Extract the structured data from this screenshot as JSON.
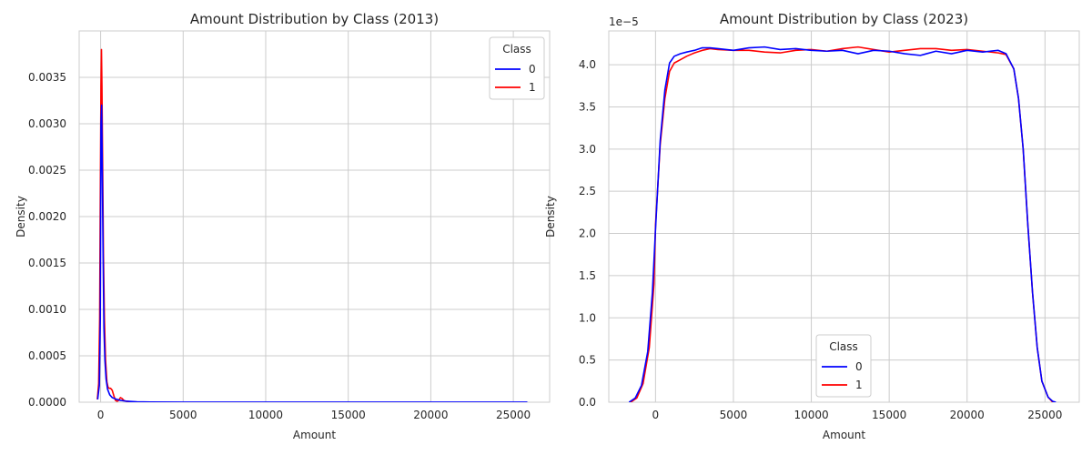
{
  "chart_data": [
    {
      "type": "line",
      "title": "Amount Distribution by Class (2013)",
      "xlabel": "Amount",
      "ylabel": "Density",
      "xlim": [
        -1300,
        27200
      ],
      "ylim": [
        0,
        0.004
      ],
      "xticks": [
        0,
        5000,
        10000,
        15000,
        20000,
        25000
      ],
      "xtick_labels": [
        "0",
        "5000",
        "10000",
        "15000",
        "20000",
        "25000"
      ],
      "yticks": [
        0,
        0.0005,
        0.001,
        0.0015,
        0.002,
        0.0025,
        0.003,
        0.0035
      ],
      "ytick_labels": [
        "0.0000",
        "0.0005",
        "0.0010",
        "0.0015",
        "0.0020",
        "0.0025",
        "0.0030",
        "0.0035"
      ],
      "offset_label": "",
      "grid": true,
      "legend": {
        "title": "Class",
        "placement": "upper right"
      },
      "series": [
        {
          "name": "0",
          "color": "#0000ff",
          "x": [
            -180,
            -80,
            -20,
            20,
            60,
            100,
            150,
            200,
            260,
            330,
            420,
            550,
            700,
            900,
            1200,
            1600,
            2200,
            3000,
            5000,
            10000,
            15000,
            20000,
            25000,
            25850
          ],
          "y": [
            3e-05,
            0.00018,
            0.0009,
            0.003,
            0.0032,
            0.0025,
            0.0016,
            0.0008,
            0.00045,
            0.00025,
            0.00014,
            8e-05,
            5e-05,
            3.5e-05,
            2e-05,
            1e-05,
            4e-06,
            2e-06,
            1.2e-06,
            8e-07,
            6e-07,
            5e-07,
            4e-07,
            2e-07
          ]
        },
        {
          "name": "1",
          "color": "#ff0000",
          "x": [
            -200,
            -120,
            -60,
            -20,
            20,
            50,
            80,
            120,
            170,
            230,
            300,
            380,
            450,
            520,
            600,
            700,
            800,
            900,
            1000,
            1100,
            1200,
            1300,
            1400,
            1550,
            1800,
            2100,
            2400
          ],
          "y": [
            3e-05,
            0.0002,
            0.0009,
            0.0022,
            0.0034,
            0.0038,
            0.0034,
            0.0026,
            0.0016,
            0.0009,
            0.00045,
            0.00022,
            0.00016,
            0.00015,
            0.00015,
            0.00013,
            7e-05,
            2e-05,
            1e-05,
            2e-05,
            5e-05,
            4e-05,
            2e-05,
            1e-05,
            6e-06,
            2e-06,
            0.0
          ]
        }
      ]
    },
    {
      "type": "line",
      "title": "Amount Distribution by Class (2023)",
      "xlabel": "Amount",
      "ylabel": "Density",
      "xlim": [
        -3000,
        27200
      ],
      "ylim": [
        0,
        4.4
      ],
      "xticks": [
        0,
        5000,
        10000,
        15000,
        20000,
        25000
      ],
      "xtick_labels": [
        "0",
        "5000",
        "10000",
        "15000",
        "20000",
        "25000"
      ],
      "yticks": [
        0,
        0.5,
        1.0,
        1.5,
        2.0,
        2.5,
        3.0,
        3.5,
        4.0
      ],
      "ytick_labels": [
        "0.0",
        "0.5",
        "1.0",
        "1.5",
        "2.0",
        "2.5",
        "3.0",
        "3.5",
        "4.0"
      ],
      "offset_label": "1e−5",
      "grid": true,
      "legend": {
        "title": "Class",
        "placement": "lower center"
      },
      "series": [
        {
          "name": "0",
          "color": "#0000ff",
          "x": [
            -1700,
            -1300,
            -900,
            -500,
            -200,
            0,
            300,
            600,
            900,
            1200,
            1600,
            2000,
            2500,
            3000,
            3500,
            4000,
            5000,
            6000,
            7000,
            8000,
            9000,
            10000,
            11000,
            12000,
            13000,
            14000,
            15000,
            16000,
            17000,
            18000,
            19000,
            20000,
            21000,
            22000,
            22500,
            23000,
            23300,
            23600,
            23900,
            24200,
            24500,
            24800,
            25200,
            25500,
            25700
          ],
          "y": [
            0.0,
            0.05,
            0.2,
            0.6,
            1.3,
            2.05,
            3.1,
            3.7,
            4.02,
            4.1,
            4.13,
            4.15,
            4.17,
            4.2,
            4.2,
            4.19,
            4.17,
            4.2,
            4.21,
            4.18,
            4.19,
            4.17,
            4.16,
            4.17,
            4.13,
            4.17,
            4.16,
            4.13,
            4.11,
            4.16,
            4.13,
            4.17,
            4.15,
            4.17,
            4.13,
            3.95,
            3.6,
            3.0,
            2.1,
            1.3,
            0.65,
            0.25,
            0.06,
            0.01,
            0.0
          ]
        },
        {
          "name": "1",
          "color": "#ff0000",
          "x": [
            -1600,
            -1200,
            -800,
            -400,
            -100,
            0,
            300,
            600,
            900,
            1200,
            1600,
            2000,
            2500,
            3000,
            3500,
            4000,
            5000,
            6000,
            7000,
            8000,
            9000,
            10000,
            11000,
            12000,
            13000,
            14000,
            15000,
            16000,
            17000,
            18000,
            19000,
            20000,
            21000,
            22000,
            22500,
            23000,
            23300,
            23600,
            23900,
            24200,
            24500,
            24800,
            25200,
            25500
          ],
          "y": [
            0.0,
            0.05,
            0.22,
            0.65,
            1.4,
            2.1,
            3.05,
            3.6,
            3.92,
            4.02,
            4.06,
            4.1,
            4.14,
            4.17,
            4.19,
            4.18,
            4.17,
            4.17,
            4.15,
            4.14,
            4.17,
            4.18,
            4.16,
            4.19,
            4.21,
            4.18,
            4.15,
            4.17,
            4.19,
            4.19,
            4.17,
            4.18,
            4.16,
            4.14,
            4.12,
            3.95,
            3.6,
            3.0,
            2.1,
            1.3,
            0.65,
            0.25,
            0.06,
            0.0
          ]
        }
      ]
    }
  ]
}
